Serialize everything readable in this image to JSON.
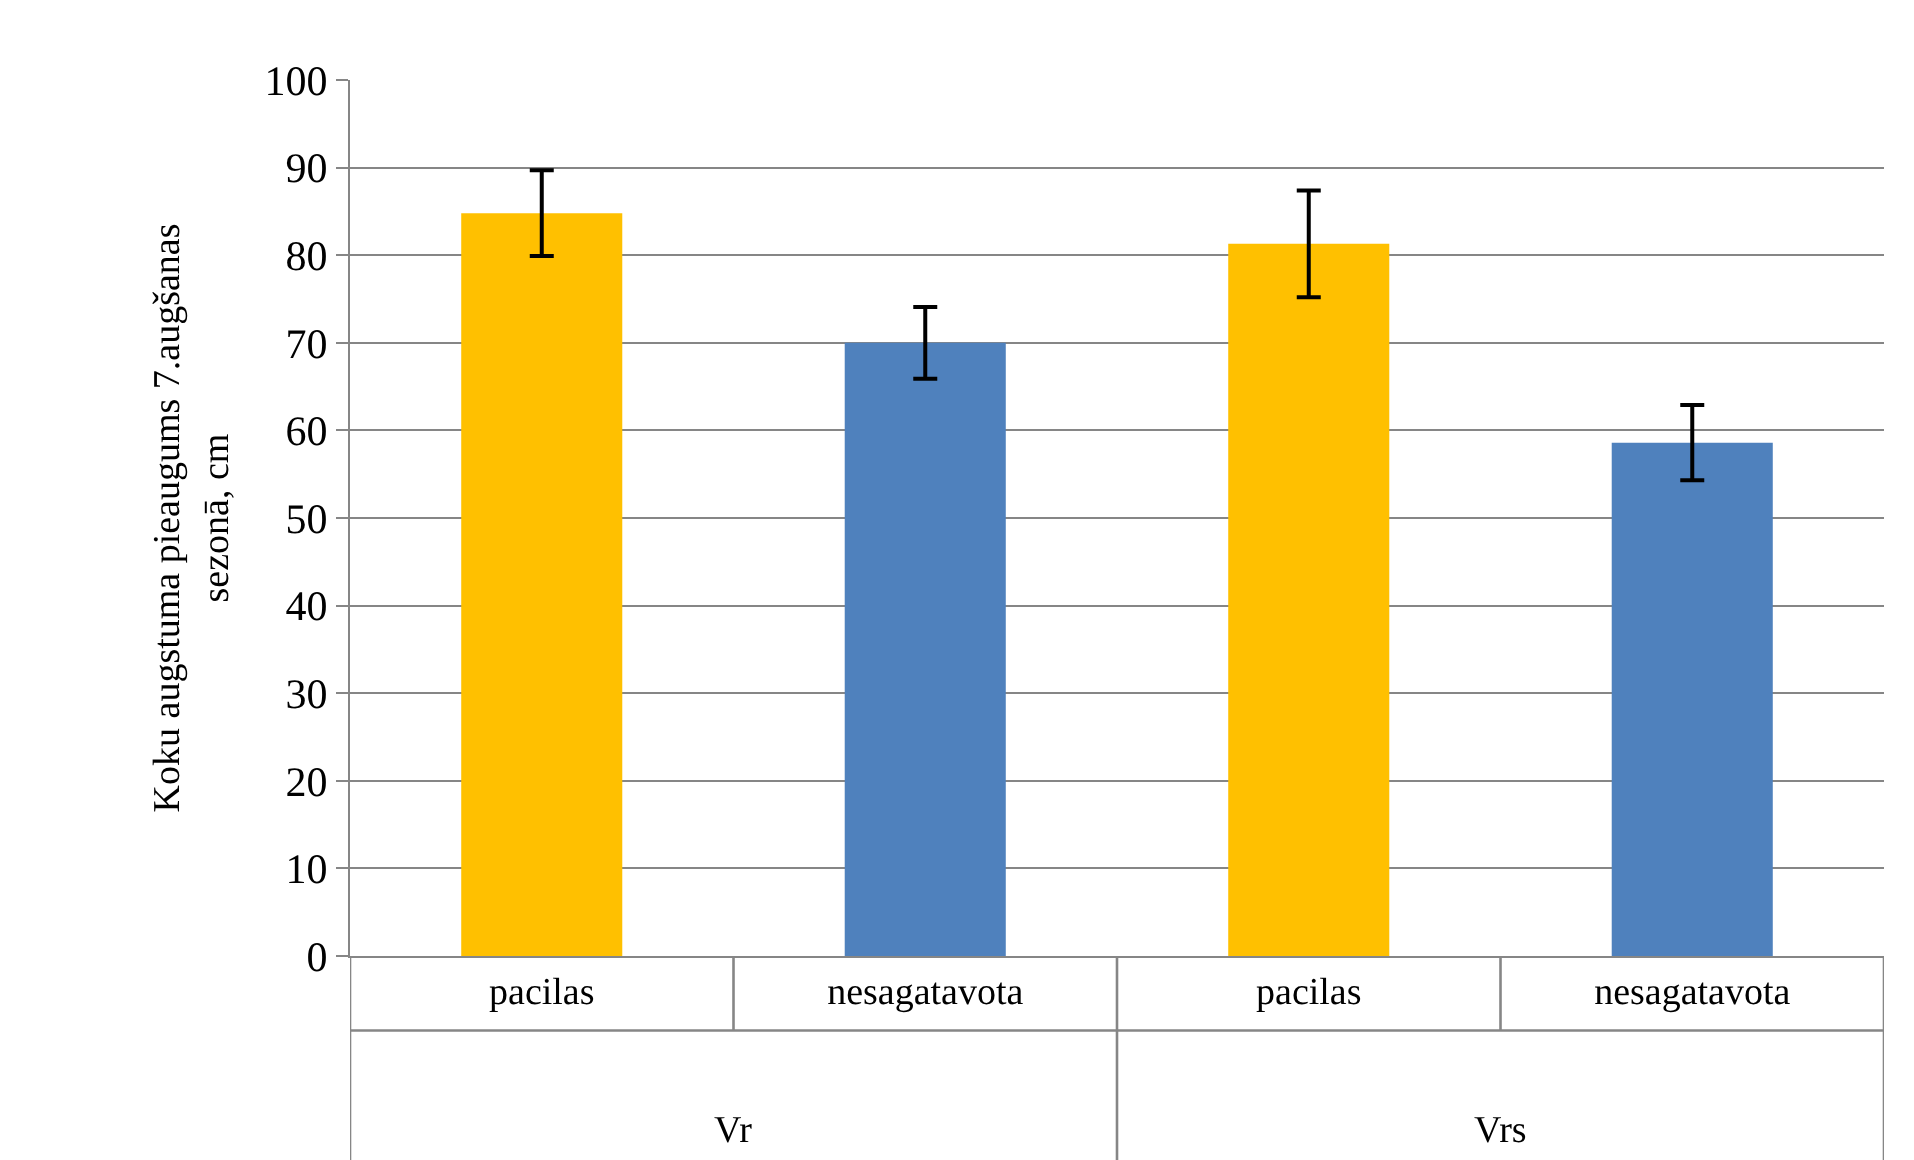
{
  "chart_data": {
    "type": "bar",
    "ylabel": "Koku augstuma pieaugums 7.augšanas sezonā, cm",
    "categories": [
      "pacilas",
      "nesagatavota",
      "pacilas",
      "nesagatavota"
    ],
    "values": [
      84.8,
      70.0,
      81.3,
      58.6
    ],
    "errors": [
      4.9,
      4.1,
      6.1,
      4.3
    ],
    "colors": [
      "#ffc000",
      "#4f81bd",
      "#ffc000",
      "#4f81bd"
    ],
    "ylim": [
      0,
      100
    ],
    "yticks": [
      0,
      10,
      20,
      30,
      40,
      50,
      60,
      70,
      80,
      90,
      100
    ],
    "grid": "y",
    "annotations": [
      "Vr",
      "Vrs"
    ]
  }
}
